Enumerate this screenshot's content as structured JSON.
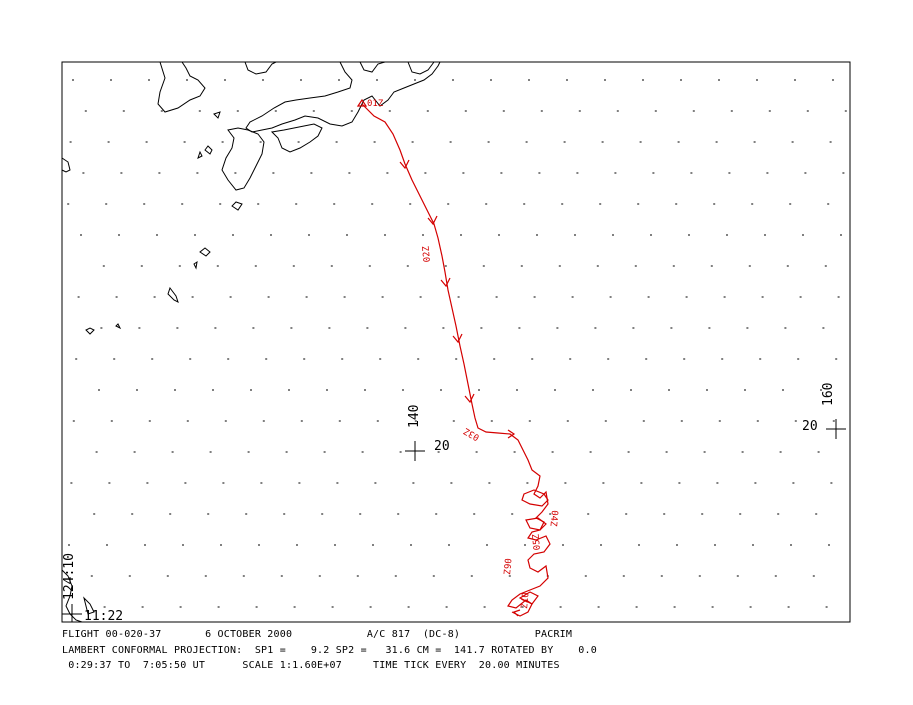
{
  "map": {
    "meridian_140": "140",
    "meridian_160": "160",
    "parallel_20_left": "20",
    "parallel_20_right": "20",
    "edge_lon_label": "124:10",
    "edge_lat_label": "11:22",
    "time_labels": [
      "01Z",
      "02Z",
      "03Z",
      "04Z",
      "05Z",
      "06Z",
      "07Z"
    ],
    "colors": {
      "track": "#d40000",
      "coast": "#000000",
      "frame": "#000000"
    }
  },
  "footer": {
    "flight": "FLIGHT 00-020-37",
    "date": "6 OCTOBER 2000",
    "aircraft": "A/C 817  (DC-8)",
    "mission": "PACRIM",
    "projection": "LAMBERT CONFORMAL PROJECTION:  SP1 =    9.2 SP2 =   31.6 CM =  141.7 ROTATED BY    0.0",
    "time_range": " 0:29:37 TO  7:05:50 UT",
    "scale": "SCALE 1:1.60E+07",
    "time_tick": "TIME TICK EVERY  20.00 MINUTES"
  }
}
